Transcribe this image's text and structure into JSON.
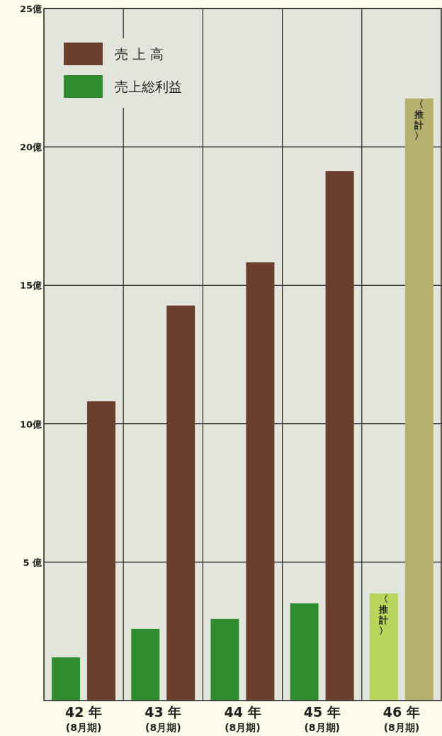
{
  "chart_data": {
    "type": "bar",
    "categories": [
      "42 年\n(8月期)",
      "43 年\n(8月期)",
      "44 年\n(8月期)",
      "45 年\n(8月期)",
      "46 年\n(8月期)"
    ],
    "series": [
      {
        "name": "売上総利益",
        "color": "#2f8c2f",
        "colors": [
          "#2f8c2f",
          "#2f8c2f",
          "#2f8c2f",
          "#2f8c2f",
          "#b8d45c"
        ],
        "values": [
          1.56,
          2.59,
          2.95,
          3.51,
          3.87
        ]
      },
      {
        "name": "売 上 高",
        "color": "#6b3f2e",
        "colors": [
          "#6b3f2e",
          "#6b3f2e",
          "#6b3f2e",
          "#6b3f2e",
          "#b6b06e"
        ],
        "values": [
          10.81,
          14.27,
          15.83,
          19.13,
          21.75
        ]
      }
    ],
    "ylim": [
      0,
      25
    ],
    "yticks": [
      {
        "value": 5,
        "label": "5 億"
      },
      {
        "value": 10,
        "label": "10億"
      },
      {
        "value": 15,
        "label": "15億"
      },
      {
        "value": 20,
        "label": "20億"
      },
      {
        "value": 25,
        "label": "25億"
      }
    ],
    "annotations": [
      {
        "text": "〈推計〉",
        "x": "46 年\n(8月期)",
        "y": 3.87
      },
      {
        "text": "〈推計〉",
        "x": "46 年\n(8月期)",
        "y": 21.75
      }
    ],
    "grid": true,
    "legend": "top left"
  }
}
